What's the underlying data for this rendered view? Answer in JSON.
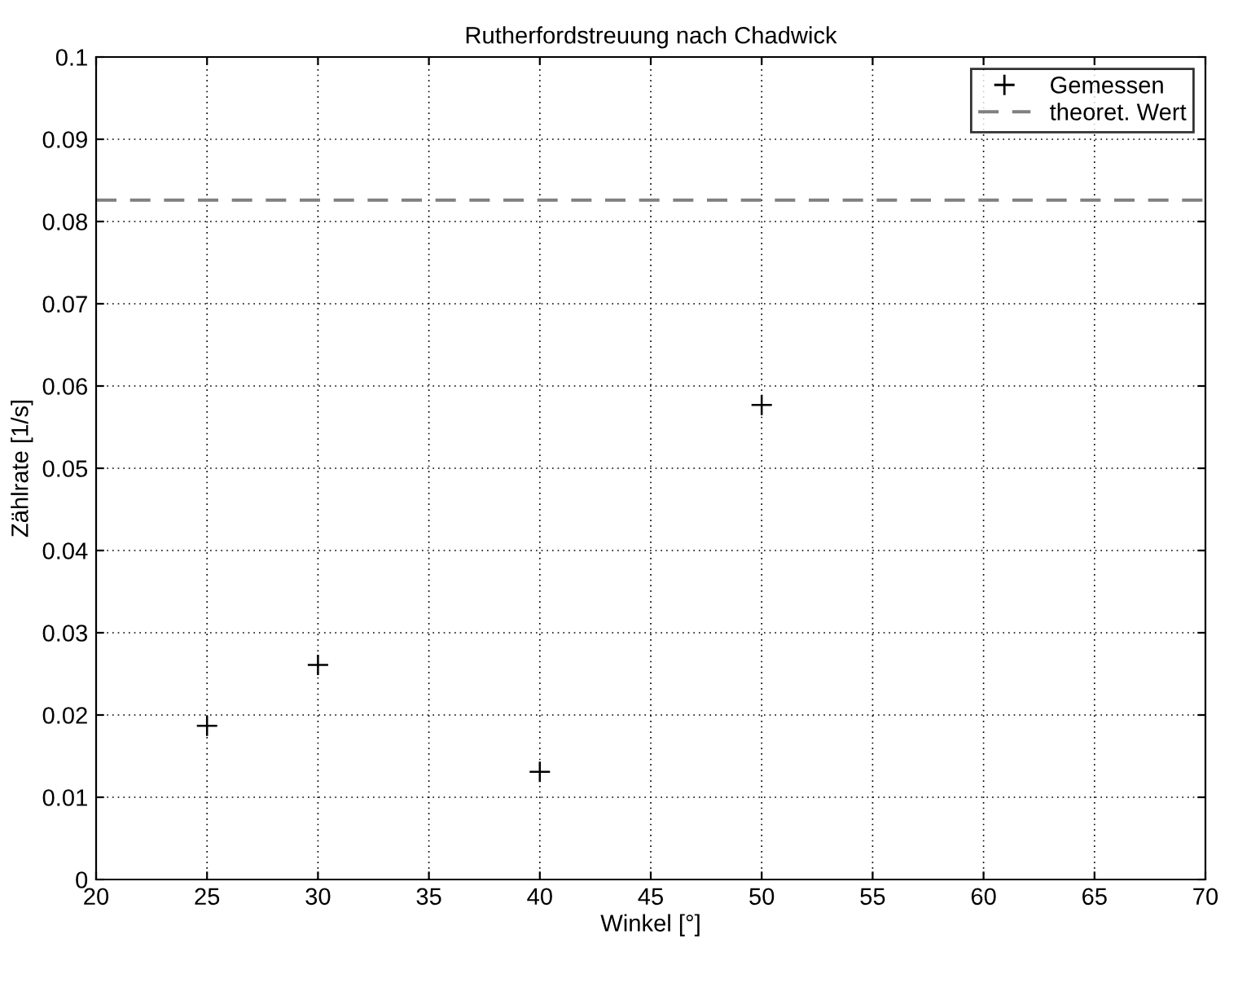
{
  "chart_data": {
    "type": "scatter",
    "title": "Rutherfordstreuung nach Chadwick",
    "xlabel": "Winkel [°]",
    "ylabel": "Zählrate [1/s]",
    "x": [
      25,
      30,
      40,
      50
    ],
    "series": [
      {
        "name": "Gemessen",
        "color": "#000000",
        "values": [
          0.0187,
          0.0261,
          0.0131,
          0.0577
        ]
      }
    ],
    "marker": "cross",
    "ref_lines": [
      {
        "axis": "y",
        "value": 0.0826,
        "label": "theoret. Wert",
        "color": "#808080",
        "line_style": "dashed"
      }
    ],
    "xlim": [
      20,
      70
    ],
    "xticks": [
      20,
      25,
      30,
      35,
      40,
      45,
      50,
      55,
      60,
      65,
      70
    ],
    "ylim": [
      0,
      0.1
    ],
    "yticks": [
      0,
      0.01,
      0.02,
      0.03,
      0.04,
      0.05,
      0.06,
      0.07,
      0.08,
      0.09,
      0.1
    ],
    "grid": true,
    "legend": "top right"
  }
}
